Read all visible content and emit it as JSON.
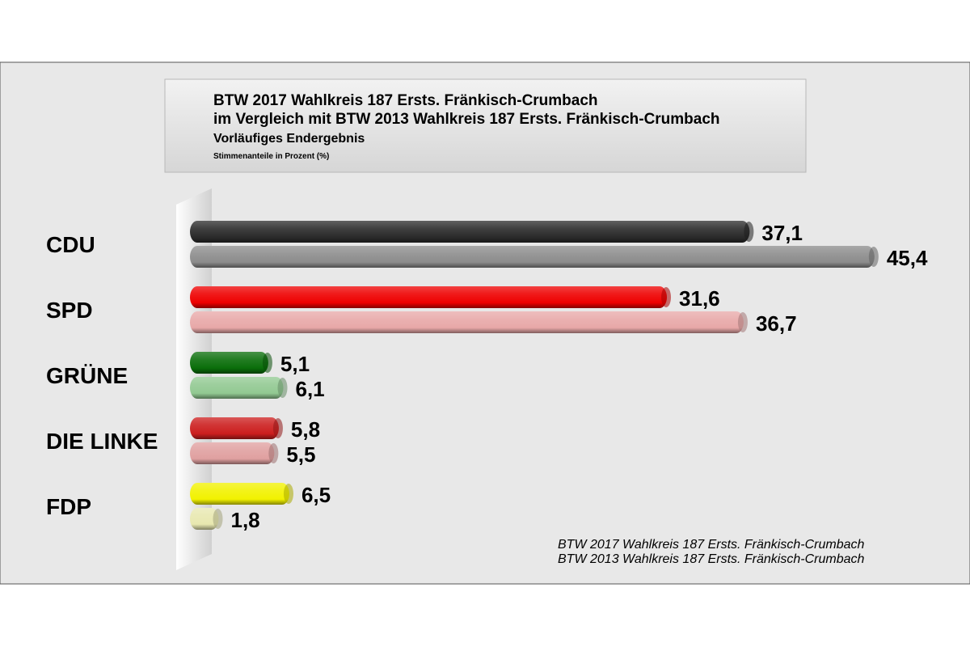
{
  "chart_data": {
    "type": "bar",
    "orientation": "horizontal",
    "title_lines": [
      "BTW 2017 Wahlkreis 187 Ersts. Fränkisch-Crumbach",
      "im Vergleich mit BTW 2013 Wahlkreis 187 Ersts. Fränkisch-Crumbach",
      "Vorläufiges Endergebnis",
      "Stimmenanteile in Prozent (%)"
    ],
    "categories": [
      "CDU",
      "SPD",
      "GRÜNE",
      "DIE LINKE",
      "FDP"
    ],
    "series": [
      {
        "name": "BTW 2017 Wahlkreis 187 Ersts. Fränkisch-Crumbach",
        "values": [
          37.1,
          31.6,
          5.1,
          5.8,
          6.5
        ],
        "labels": [
          "37,1",
          "31,6",
          "5,1",
          "5,8",
          "6,5"
        ],
        "colors": [
          "#2b2b2b",
          "#ee0000",
          "#0a6e0a",
          "#cc1f1f",
          "#f2f200"
        ]
      },
      {
        "name": "BTW 2013 Wahlkreis 187 Ersts. Fränkisch-Crumbach",
        "values": [
          45.4,
          36.7,
          6.1,
          5.5,
          1.8
        ],
        "labels": [
          "45,4",
          "36,7",
          "6,1",
          "5,5",
          "1,8"
        ],
        "colors": [
          "#8c8c8c",
          "#e8a8a8",
          "#92c992",
          "#e0a0a0",
          "#e8e8b0"
        ]
      }
    ],
    "xlim": [
      0,
      46
    ],
    "grid": false,
    "legend_position": "bottom-right",
    "colors": {
      "background": "#e8e8e8",
      "title_box": "#e0e0e0"
    }
  }
}
